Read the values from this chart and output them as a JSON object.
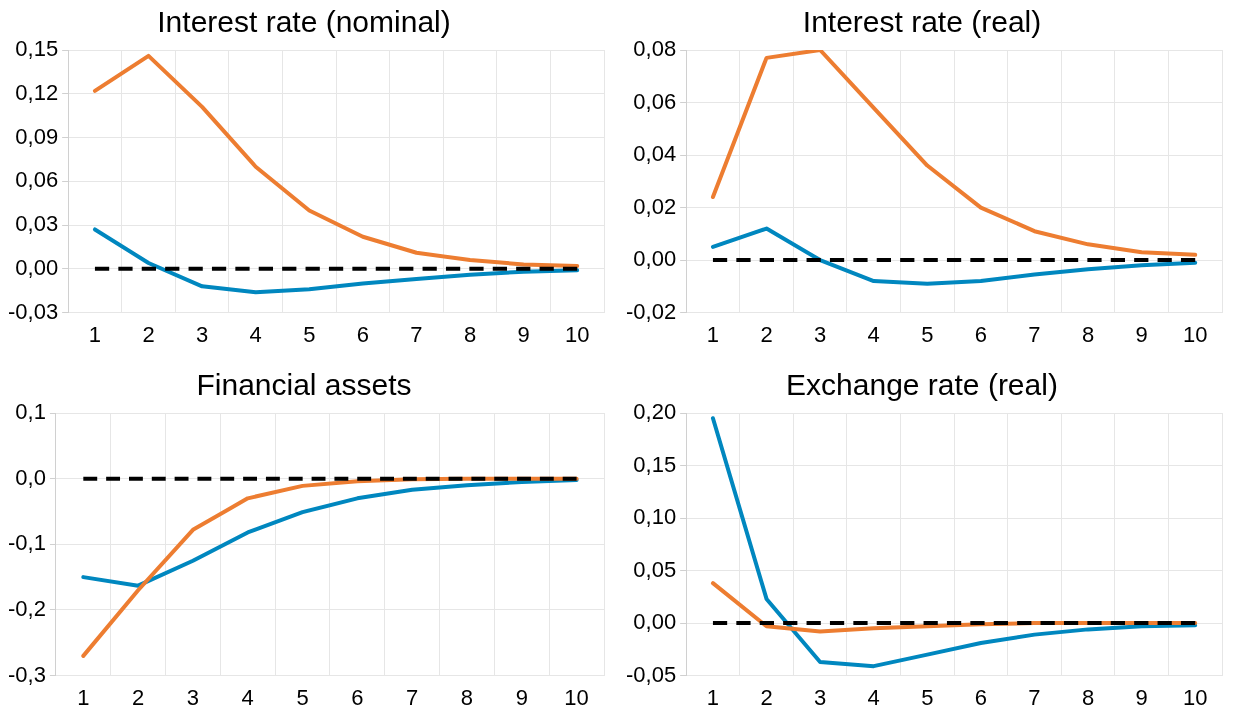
{
  "chart_data": [
    {
      "type": "line",
      "title": "Interest rate (nominal)",
      "categories": [
        "1",
        "2",
        "3",
        "4",
        "5",
        "6",
        "7",
        "8",
        "9",
        "10"
      ],
      "ylim": [
        -0.03,
        0.15
      ],
      "yticks": [
        {
          "value": -0.03,
          "label": "-0,03"
        },
        {
          "value": 0,
          "label": "0,00"
        },
        {
          "value": 0.03,
          "label": "0,03"
        },
        {
          "value": 0.06,
          "label": "0,06"
        },
        {
          "value": 0.09,
          "label": "0,09"
        },
        {
          "value": 0.12,
          "label": "0,12"
        },
        {
          "value": 0.15,
          "label": "0,15"
        }
      ],
      "grid": true,
      "legend": false,
      "series": [
        {
          "color": "#ed7d31",
          "line_style": "solid",
          "values": [
            0.122,
            0.146,
            0.111,
            0.07,
            0.04,
            0.022,
            0.011,
            0.006,
            0.003,
            0.002
          ]
        },
        {
          "color": "#0087bf",
          "line_style": "solid",
          "values": [
            0.027,
            0.004,
            -0.012,
            -0.016,
            -0.014,
            -0.01,
            -0.007,
            -0.004,
            -0.002,
            -0.001
          ]
        },
        {
          "color": "#000000",
          "line_style": "dashed",
          "values": [
            0,
            0,
            0,
            0,
            0,
            0,
            0,
            0,
            0,
            0
          ]
        }
      ]
    },
    {
      "type": "line",
      "title": "Interest rate (real)",
      "categories": [
        "1",
        "2",
        "3",
        "4",
        "5",
        "6",
        "7",
        "8",
        "9",
        "10"
      ],
      "ylim": [
        -0.02,
        0.08
      ],
      "yticks": [
        {
          "value": -0.02,
          "label": "-0,02"
        },
        {
          "value": 0,
          "label": "0,00"
        },
        {
          "value": 0.02,
          "label": "0,02"
        },
        {
          "value": 0.04,
          "label": "0,04"
        },
        {
          "value": 0.06,
          "label": "0,06"
        },
        {
          "value": 0.08,
          "label": "0,08"
        }
      ],
      "grid": true,
      "legend": false,
      "series": [
        {
          "color": "#ed7d31",
          "line_style": "solid",
          "values": [
            0.024,
            0.077,
            0.08,
            0.058,
            0.036,
            0.02,
            0.011,
            0.006,
            0.003,
            0.002
          ]
        },
        {
          "color": "#0087bf",
          "line_style": "solid",
          "values": [
            0.005,
            0.012,
            0.0,
            -0.008,
            -0.009,
            -0.008,
            -0.0055,
            -0.0035,
            -0.002,
            -0.001
          ]
        },
        {
          "color": "#000000",
          "line_style": "dashed",
          "values": [
            0,
            0,
            0,
            0,
            0,
            0,
            0,
            0,
            0,
            0
          ]
        }
      ]
    },
    {
      "type": "line",
      "title": "Financial assets",
      "categories": [
        "1",
        "2",
        "3",
        "4",
        "5",
        "6",
        "7",
        "8",
        "9",
        "10"
      ],
      "ylim": [
        -0.3,
        0.1
      ],
      "yticks": [
        {
          "value": -0.3,
          "label": "-0,3"
        },
        {
          "value": -0.2,
          "label": "-0,2"
        },
        {
          "value": -0.1,
          "label": "-0,1"
        },
        {
          "value": 0,
          "label": "0,0"
        },
        {
          "value": 0.1,
          "label": "0,1"
        }
      ],
      "grid": true,
      "legend": false,
      "series": [
        {
          "color": "#0087bf",
          "line_style": "solid",
          "values": [
            -0.15,
            -0.163,
            -0.125,
            -0.082,
            -0.051,
            -0.03,
            -0.017,
            -0.01,
            -0.005,
            -0.002
          ]
        },
        {
          "color": "#ed7d31",
          "line_style": "solid",
          "values": [
            -0.27,
            -0.17,
            -0.078,
            -0.03,
            -0.011,
            -0.004,
            -0.001,
            0,
            0,
            0
          ]
        },
        {
          "color": "#000000",
          "line_style": "dashed",
          "values": [
            0,
            0,
            0,
            0,
            0,
            0,
            0,
            0,
            0,
            0
          ]
        }
      ]
    },
    {
      "type": "line",
      "title": "Exchange rate (real)",
      "categories": [
        "1",
        "2",
        "3",
        "4",
        "5",
        "6",
        "7",
        "8",
        "9",
        "10"
      ],
      "ylim": [
        -0.05,
        0.2
      ],
      "yticks": [
        {
          "value": -0.05,
          "label": "-0,05"
        },
        {
          "value": 0,
          "label": "0,00"
        },
        {
          "value": 0.05,
          "label": "0,05"
        },
        {
          "value": 0.1,
          "label": "0,10"
        },
        {
          "value": 0.15,
          "label": "0,15"
        },
        {
          "value": 0.2,
          "label": "0,20"
        }
      ],
      "grid": true,
      "legend": false,
      "series": [
        {
          "color": "#0087bf",
          "line_style": "solid",
          "values": [
            0.195,
            0.023,
            -0.037,
            -0.041,
            -0.03,
            -0.019,
            -0.011,
            -0.006,
            -0.003,
            -0.002
          ]
        },
        {
          "color": "#ed7d31",
          "line_style": "solid",
          "values": [
            0.038,
            -0.003,
            -0.008,
            -0.005,
            -0.003,
            -0.001,
            0,
            0,
            0,
            0
          ]
        },
        {
          "color": "#000000",
          "line_style": "dashed",
          "values": [
            0,
            0,
            0,
            0,
            0,
            0,
            0,
            0,
            0,
            0
          ]
        }
      ]
    }
  ]
}
